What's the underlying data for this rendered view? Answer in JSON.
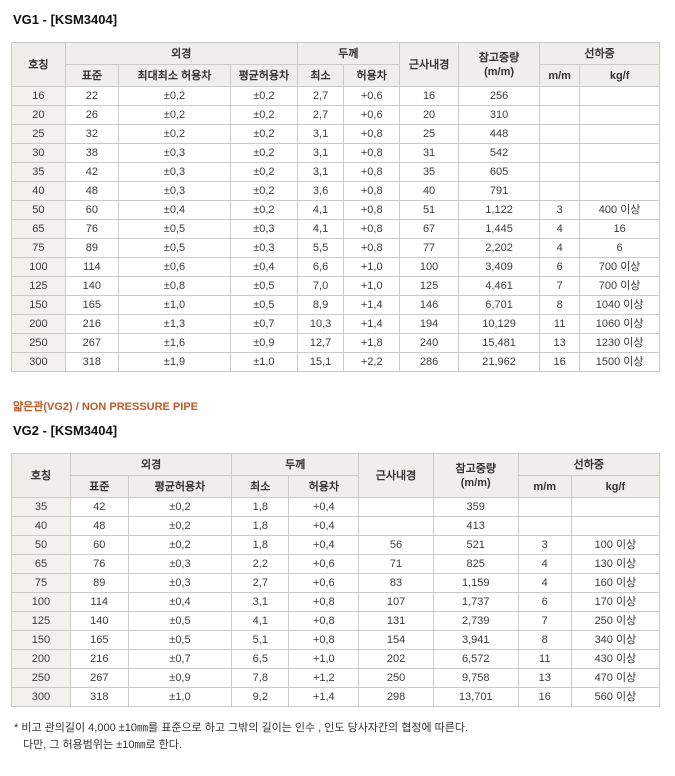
{
  "page": {
    "table1_title": "VG1 - [KSM3404]",
    "subtitle_orange": "얇은관(VG2) / NON PRESSURE PIPE",
    "table2_title": "VG2 - [KSM3404]",
    "footnote_line1": "* 비고 관의길이 4,000 ±10㎜를 표준으로 하고 그밖의 길이는 인수 , 인도 당사자간의 협정에 따른다.",
    "footnote_line2": "다만, 그 허용범위는 ±10㎜로 한다."
  },
  "colors": {
    "accent_orange": "#bd5b2a",
    "header_bg": "#efeeeb",
    "first_col_bg": "#f2f1ee",
    "outer_border": "#969696",
    "inner_border": "#cacaca"
  },
  "table1": {
    "headers": {
      "hochung": "호칭",
      "oegyeong": "외경",
      "dukke": "두께",
      "geunsanaegyeong": "근사내경",
      "chamgo_line1": "참고중량",
      "chamgo_line2": "(m/m)",
      "seonhajung": "선하중",
      "pyojun": "표준",
      "choedaechoeso": "최대최소 허용차",
      "pyeonggyun": "평균허용차",
      "choeso": "최소",
      "heoyongcha": "허용차",
      "mm": "m/m",
      "kgf": "kg/f"
    },
    "rows": [
      [
        "16",
        "22",
        "±0,2",
        "±0,2",
        "2,7",
        "+0,6",
        "16",
        "256",
        "",
        ""
      ],
      [
        "20",
        "26",
        "±0,2",
        "±0,2",
        "2,7",
        "+0,6",
        "20",
        "310",
        "",
        ""
      ],
      [
        "25",
        "32",
        "±0,2",
        "±0,2",
        "3,1",
        "+0,8",
        "25",
        "448",
        "",
        ""
      ],
      [
        "30",
        "38",
        "±0,3",
        "±0,2",
        "3,1",
        "+0,8",
        "31",
        "542",
        "",
        ""
      ],
      [
        "35",
        "42",
        "±0,3",
        "±0,2",
        "3,1",
        "+0,8",
        "35",
        "605",
        "",
        ""
      ],
      [
        "40",
        "48",
        "±0,3",
        "±0,2",
        "3,6",
        "+0,8",
        "40",
        "791",
        "",
        ""
      ],
      [
        "50",
        "60",
        "±0,4",
        "±0,2",
        "4,1",
        "+0,8",
        "51",
        "1,122",
        "3",
        "400 이상"
      ],
      [
        "65",
        "76",
        "±0,5",
        "±0,3",
        "4,1",
        "+0,8",
        "67",
        "1,445",
        "4",
        "16"
      ],
      [
        "75",
        "89",
        "±0,5",
        "±0,3",
        "5,5",
        "+0,8",
        "77",
        "2,202",
        "4",
        "6"
      ],
      [
        "100",
        "114",
        "±0,6",
        "±0,4",
        "6,6",
        "+1,0",
        "100",
        "3,409",
        "6",
        "700 이상"
      ],
      [
        "125",
        "140",
        "±0,8",
        "±0,5",
        "7,0",
        "+1,0",
        "125",
        "4,461",
        "7",
        "700 이상"
      ],
      [
        "150",
        "165",
        "±1,0",
        "±0,5",
        "8,9",
        "+1,4",
        "146",
        "6,701",
        "8",
        "1040 이상"
      ],
      [
        "200",
        "216",
        "±1,3",
        "±0,7",
        "10,3",
        "+1,4",
        "194",
        "10,129",
        "11",
        "1060 이상"
      ],
      [
        "250",
        "267",
        "±1,6",
        "±0,9",
        "12,7",
        "+1,8",
        "240",
        "15,481",
        "13",
        "1230 이상"
      ],
      [
        "300",
        "318",
        "±1,9",
        "±1,0",
        "15,1",
        "+2,2",
        "286",
        "21,962",
        "16",
        "1500 이상"
      ]
    ]
  },
  "table2": {
    "headers": {
      "hochung": "호칭",
      "oegyeong": "외경",
      "dukke": "두께",
      "geunsanaegyeong": "근사내경",
      "chamgo_line1": "참고중량",
      "chamgo_line2": "(m/m)",
      "seonhajung": "선하중",
      "pyojun": "표준",
      "pyeonggyun": "평균허용차",
      "choeso": "최소",
      "heoyongcha": "허용차",
      "mm": "m/m",
      "kgf": "kg/f"
    },
    "rows": [
      [
        "35",
        "42",
        "±0,2",
        "1,8",
        "+0,4",
        "",
        "359",
        "",
        ""
      ],
      [
        "40",
        "48",
        "±0,2",
        "1,8",
        "+0,4",
        "",
        "413",
        "",
        ""
      ],
      [
        "50",
        "60",
        "±0,2",
        "1,8",
        "+0,4",
        "56",
        "521",
        "3",
        "100 이상"
      ],
      [
        "65",
        "76",
        "±0,3",
        "2,2",
        "+0,6",
        "71",
        "825",
        "4",
        "130 이상"
      ],
      [
        "75",
        "89",
        "±0,3",
        "2,7",
        "+0,6",
        "83",
        "1,159",
        "4",
        "160 이상"
      ],
      [
        "100",
        "114",
        "±0,4",
        "3,1",
        "+0,8",
        "107",
        "1,737",
        "6",
        "170 이상"
      ],
      [
        "125",
        "140",
        "±0,5",
        "4,1",
        "+0,8",
        "131",
        "2,739",
        "7",
        "250 이상"
      ],
      [
        "150",
        "165",
        "±0,5",
        "5,1",
        "+0,8",
        "154",
        "3,941",
        "8",
        "340 이상"
      ],
      [
        "200",
        "216",
        "±0,7",
        "6,5",
        "+1,0",
        "202",
        "6,572",
        "11",
        "430 이상"
      ],
      [
        "250",
        "267",
        "±0,9",
        "7,8",
        "+1,2",
        "250",
        "9,758",
        "13",
        "470 이상"
      ],
      [
        "300",
        "318",
        "±1,0",
        "9,2",
        "+1,4",
        "298",
        "13,701",
        "16",
        "560 이상"
      ]
    ]
  }
}
